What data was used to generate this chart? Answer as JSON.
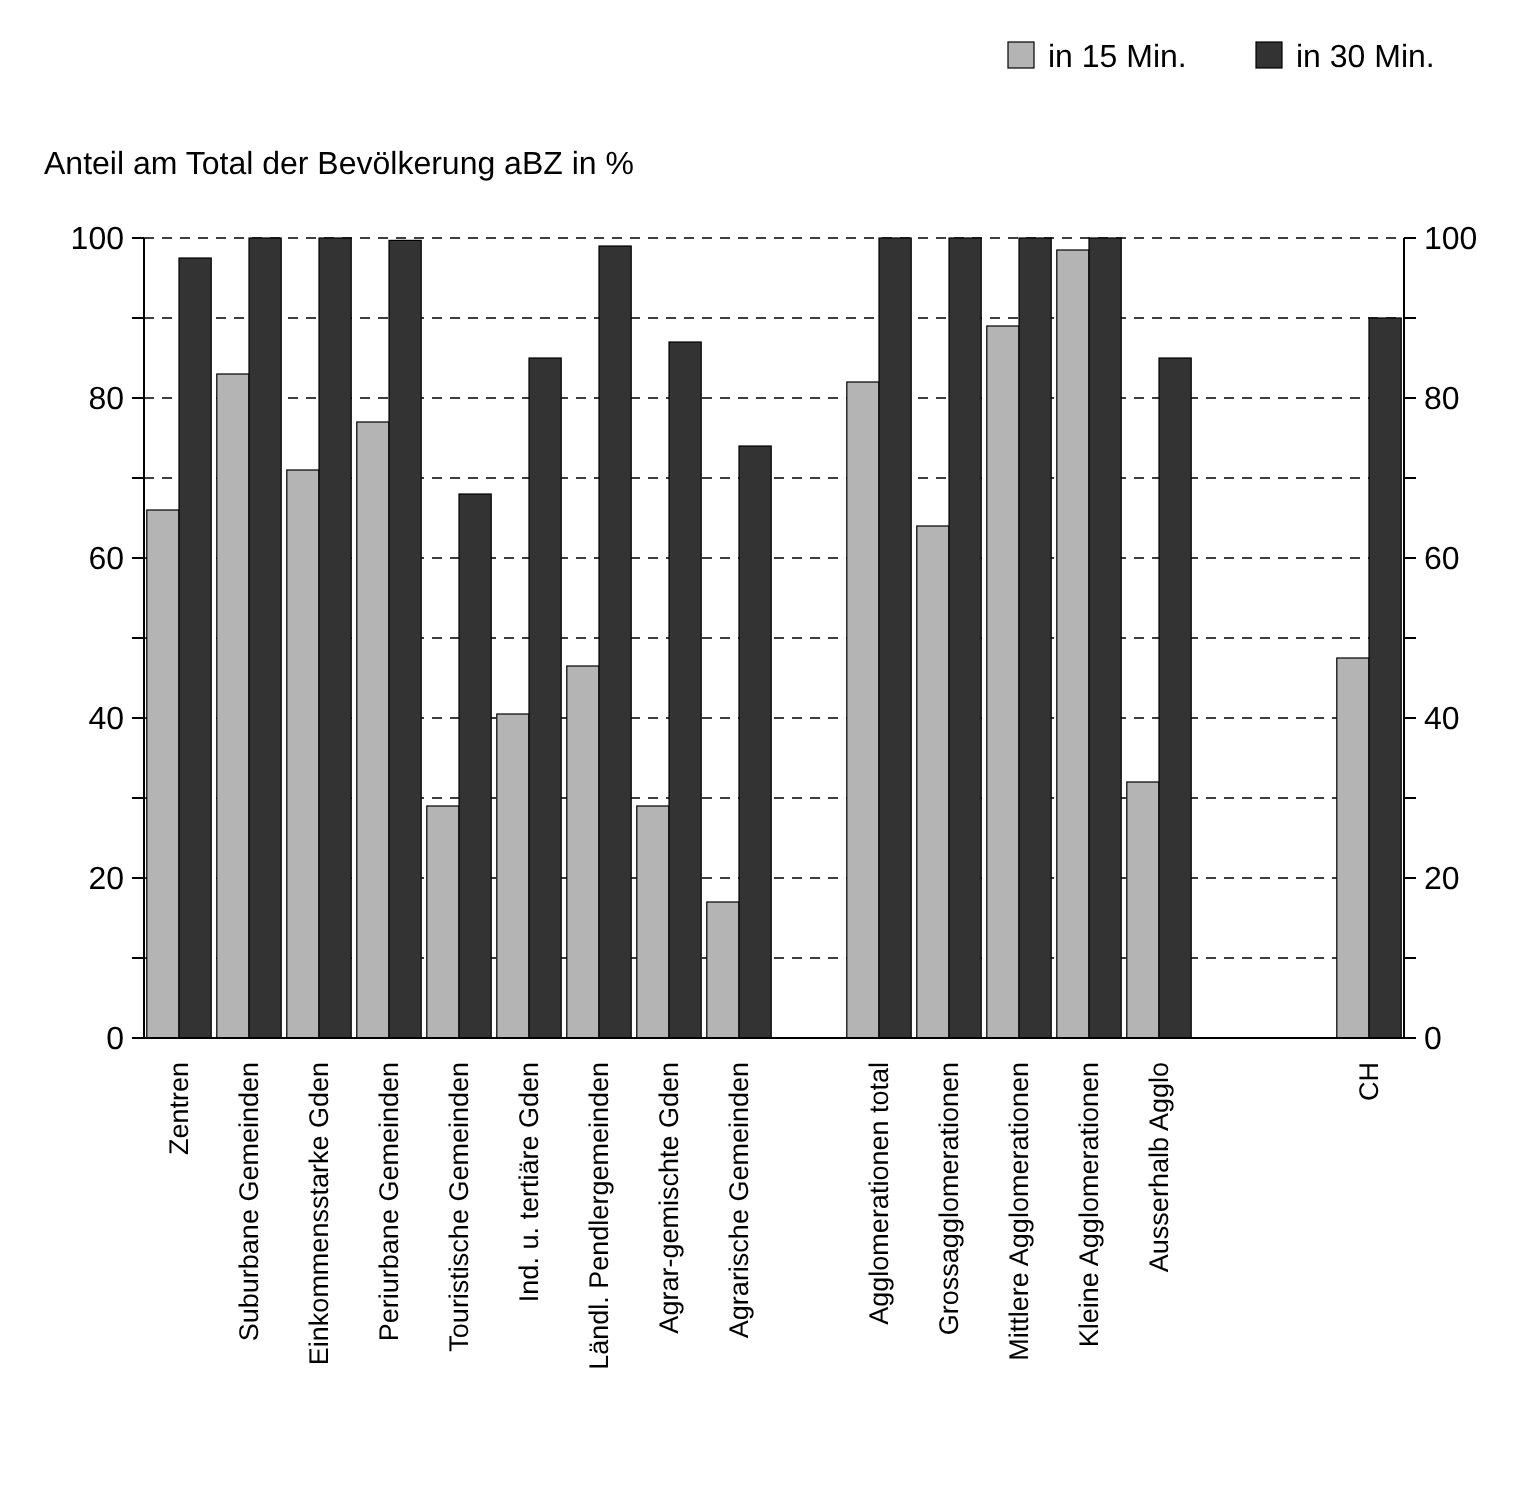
{
  "chart_data": {
    "type": "bar",
    "ylabel": "Anteil am Total der Bevölkerung aBZ in %",
    "categories": [
      "Zentren",
      "Suburbane Gemeinden",
      "Einkommensstarke Gden",
      "Periurbane Gemeinden",
      "Touristische Gemeinden",
      "Ind. u. tertiäre Gden",
      "Ländl. Pendlergemeinden",
      "Agrar-gemischte Gden",
      "Agrarische Gemeinden",
      null,
      "Agglomerationen total",
      "Grossagglomerationen",
      "Mittlere Agglomerationen",
      "Kleine Agglomerationen",
      "Ausserhalb Agglo",
      null,
      null,
      "CH"
    ],
    "series": [
      {
        "name": "in 15 Min.",
        "color": "#b4b4b4",
        "values": [
          66,
          83,
          71,
          77,
          29,
          40.5,
          46.5,
          29,
          17,
          null,
          82,
          64,
          89,
          98.5,
          32,
          null,
          null,
          47.5
        ]
      },
      {
        "name": "in 30 Min.",
        "color": "#333333",
        "values": [
          97.5,
          100,
          100,
          99.7,
          68,
          85,
          99,
          87,
          74,
          null,
          100,
          100,
          100,
          100,
          85,
          null,
          null,
          90
        ]
      }
    ],
    "ylim": [
      0,
      100
    ],
    "yticks": [
      0,
      {
        "value": 10,
        "label": null
      },
      20,
      {
        "value": 30,
        "label": null
      },
      40,
      {
        "value": 50,
        "label": null
      },
      60,
      {
        "value": 70,
        "label": null
      },
      80,
      {
        "value": 90,
        "label": null
      },
      100
    ],
    "y2lim": [
      0,
      100
    ],
    "y2ticks": [
      0,
      {
        "value": 10,
        "label": null
      },
      20,
      {
        "value": 30,
        "label": null
      },
      40,
      {
        "value": 50,
        "label": null
      },
      60,
      {
        "value": 70,
        "label": null
      },
      80,
      {
        "value": 90,
        "label": null
      },
      100
    ],
    "grid": "y",
    "legend": "top right"
  }
}
